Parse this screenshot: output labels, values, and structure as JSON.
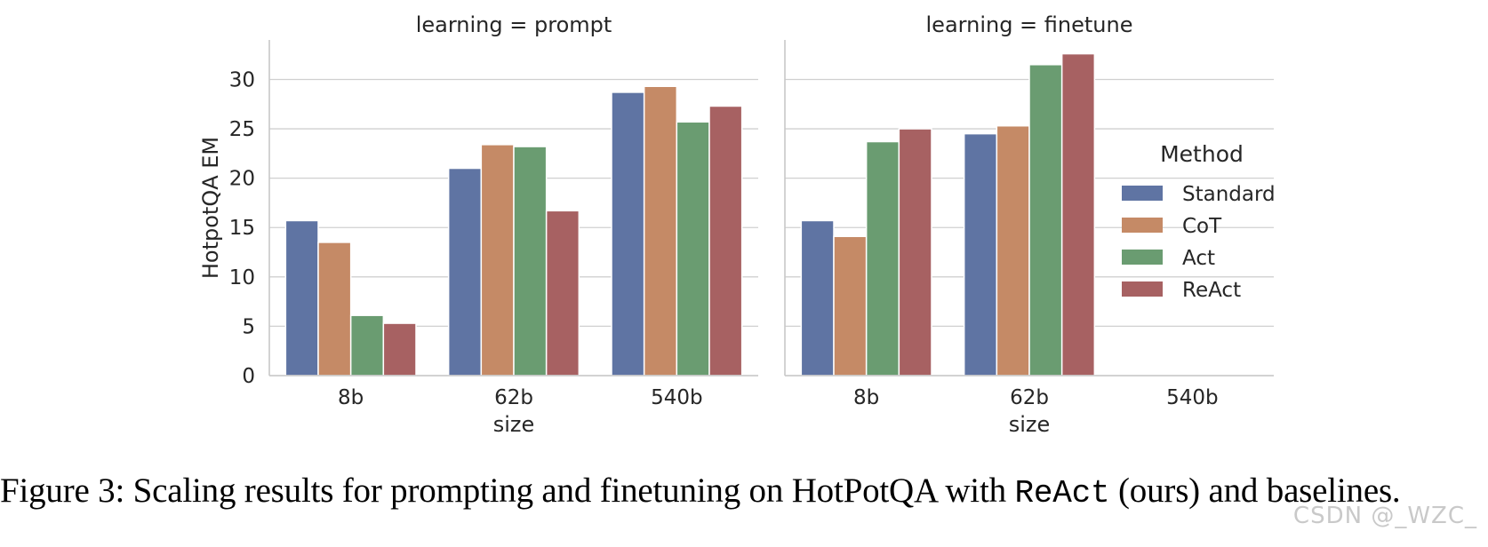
{
  "chart_data": {
    "type": "bar",
    "x_label": "size",
    "y_label": "HotpotQA EM",
    "categories": [
      "8b",
      "62b",
      "540b"
    ],
    "ylim": [
      0,
      34
    ],
    "yticks": [
      0,
      5,
      10,
      15,
      20,
      25,
      30
    ],
    "grid": "horizontal",
    "legend": {
      "title": "Method",
      "placement": "right",
      "entries": [
        "Standard",
        "CoT",
        "Act",
        "ReAct"
      ]
    },
    "colors": {
      "Standard": "#5f74a3",
      "CoT": "#c58a66",
      "Act": "#6a9c71",
      "ReAct": "#a76162"
    },
    "panels": [
      {
        "title": "learning = prompt",
        "series": [
          {
            "name": "Standard",
            "values": [
              15.7,
              21.0,
              28.7
            ]
          },
          {
            "name": "CoT",
            "values": [
              13.5,
              23.4,
              29.3
            ]
          },
          {
            "name": "Act",
            "values": [
              6.1,
              23.2,
              25.7
            ]
          },
          {
            "name": "ReAct",
            "values": [
              5.3,
              16.7,
              27.3
            ]
          }
        ]
      },
      {
        "title": "learning = finetune",
        "series": [
          {
            "name": "Standard",
            "values": [
              15.7,
              24.5,
              null
            ]
          },
          {
            "name": "CoT",
            "values": [
              14.1,
              25.3,
              null
            ]
          },
          {
            "name": "Act",
            "values": [
              23.7,
              31.5,
              null
            ]
          },
          {
            "name": "ReAct",
            "values": [
              25.0,
              32.6,
              null
            ]
          }
        ]
      }
    ]
  },
  "caption": {
    "prefix": "Figure 3: Scaling results for prompting and finetuning on HotPotQA with ",
    "code": "ReAct",
    "suffix": " (ours) and baselines."
  },
  "watermark": "CSDN @_WZC_"
}
